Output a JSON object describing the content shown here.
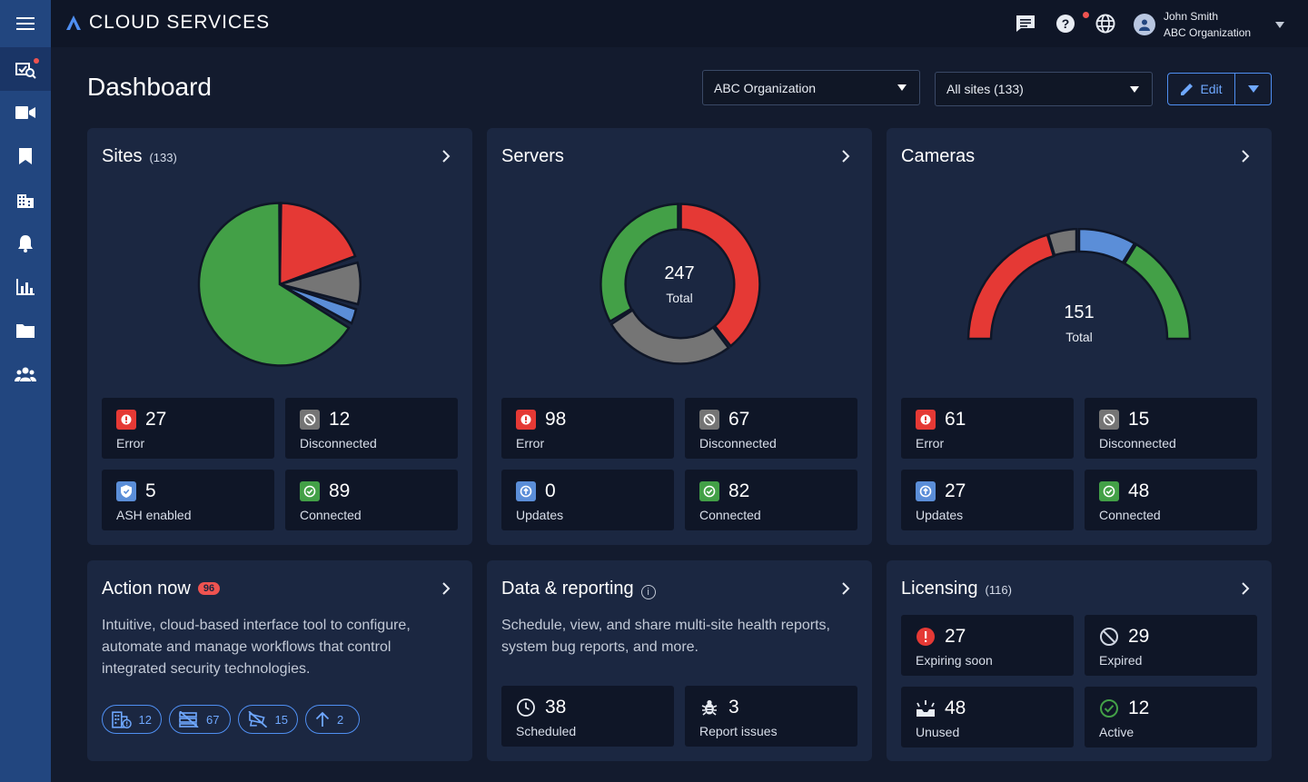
{
  "app": {
    "brand": "CLOUD SERVICES"
  },
  "user": {
    "name": "John Smith",
    "org": "ABC Organization"
  },
  "page": {
    "title": "Dashboard"
  },
  "filters": {
    "organization": "ABC Organization",
    "sites": "All sites (133)",
    "edit_label": "Edit"
  },
  "sidebar": {
    "items": [
      "menu-icon",
      "health-icon",
      "video-icon",
      "bookmark-icon",
      "building-icon",
      "bell-icon",
      "chart-icon",
      "folder-icon",
      "people-icon"
    ]
  },
  "colors": {
    "error": "#e53935",
    "disconnected": "#757575",
    "info": "#5b8ed8",
    "ok": "#43a047",
    "accent": "#4f8ff2"
  },
  "sites": {
    "title": "Sites",
    "count": "(133)",
    "stats": [
      {
        "value": "27",
        "label": "Error"
      },
      {
        "value": "12",
        "label": "Disconnected"
      },
      {
        "value": "5",
        "label": "ASH enabled"
      },
      {
        "value": "89",
        "label": "Connected"
      }
    ]
  },
  "servers": {
    "title": "Servers",
    "total": "247",
    "total_label": "Total",
    "stats": [
      {
        "value": "98",
        "label": "Error"
      },
      {
        "value": "67",
        "label": "Disconnected"
      },
      {
        "value": "0",
        "label": "Updates"
      },
      {
        "value": "82",
        "label": "Connected"
      }
    ]
  },
  "cameras": {
    "title": "Cameras",
    "total": "151",
    "total_label": "Total",
    "stats": [
      {
        "value": "61",
        "label": "Error"
      },
      {
        "value": "15",
        "label": "Disconnected"
      },
      {
        "value": "27",
        "label": "Updates"
      },
      {
        "value": "48",
        "label": "Connected"
      }
    ]
  },
  "action_now": {
    "title": "Action now",
    "badge": "96",
    "description": "Intuitive, cloud-based interface tool to configure, automate and manage workflows that control integrated security technologies.",
    "pills": [
      {
        "icon": "building-error-icon",
        "value": "12"
      },
      {
        "icon": "server-off-icon",
        "value": "67"
      },
      {
        "icon": "camera-off-icon",
        "value": "15"
      },
      {
        "icon": "arrow-up-icon",
        "value": "2"
      }
    ]
  },
  "data_reporting": {
    "title": "Data & reporting",
    "info": "i",
    "description": "Schedule, view, and share multi-site health reports, system bug reports, and more.",
    "stats": [
      {
        "value": "38",
        "label": "Scheduled"
      },
      {
        "value": "3",
        "label": "Report issues"
      }
    ]
  },
  "licensing": {
    "title": "Licensing",
    "count": "(116)",
    "stats": [
      {
        "value": "27",
        "label": "Expiring soon"
      },
      {
        "value": "29",
        "label": "Expired"
      },
      {
        "value": "48",
        "label": "Unused"
      },
      {
        "value": "12",
        "label": "Active"
      }
    ]
  }
}
